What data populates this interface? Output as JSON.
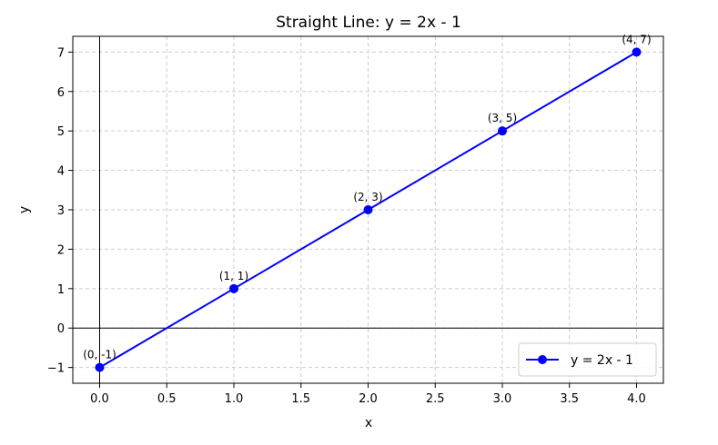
{
  "chart_data": {
    "type": "line",
    "title": "Straight Line: y = 2x - 1",
    "xlabel": "x",
    "ylabel": "y",
    "xlim": [
      -0.2,
      4.2
    ],
    "ylim": [
      -1.4,
      7.4
    ],
    "grid": true,
    "grid_style": "dashed",
    "legend_position": "lower-right",
    "x_ticks": [
      0.0,
      0.5,
      1.0,
      1.5,
      2.0,
      2.5,
      3.0,
      3.5,
      4.0
    ],
    "x_tick_labels": [
      "0.0",
      "0.5",
      "1.0",
      "1.5",
      "2.0",
      "2.5",
      "3.0",
      "3.5",
      "4.0"
    ],
    "y_ticks": [
      -1,
      0,
      1,
      2,
      3,
      4,
      5,
      6,
      7
    ],
    "y_tick_labels": [
      "−1",
      "0",
      "1",
      "2",
      "3",
      "4",
      "5",
      "6",
      "7"
    ],
    "reference_lines": {
      "x": 0,
      "y": 0
    },
    "series": [
      {
        "name": "y = 2x - 1",
        "color": "#0000ff",
        "marker": "circle",
        "x": [
          0,
          1,
          2,
          3,
          4
        ],
        "y": [
          -1,
          1,
          3,
          5,
          7
        ],
        "point_labels": [
          "(0, -1)",
          "(1, 1)",
          "(2, 3)",
          "(3, 5)",
          "(4, 7)"
        ]
      }
    ]
  }
}
